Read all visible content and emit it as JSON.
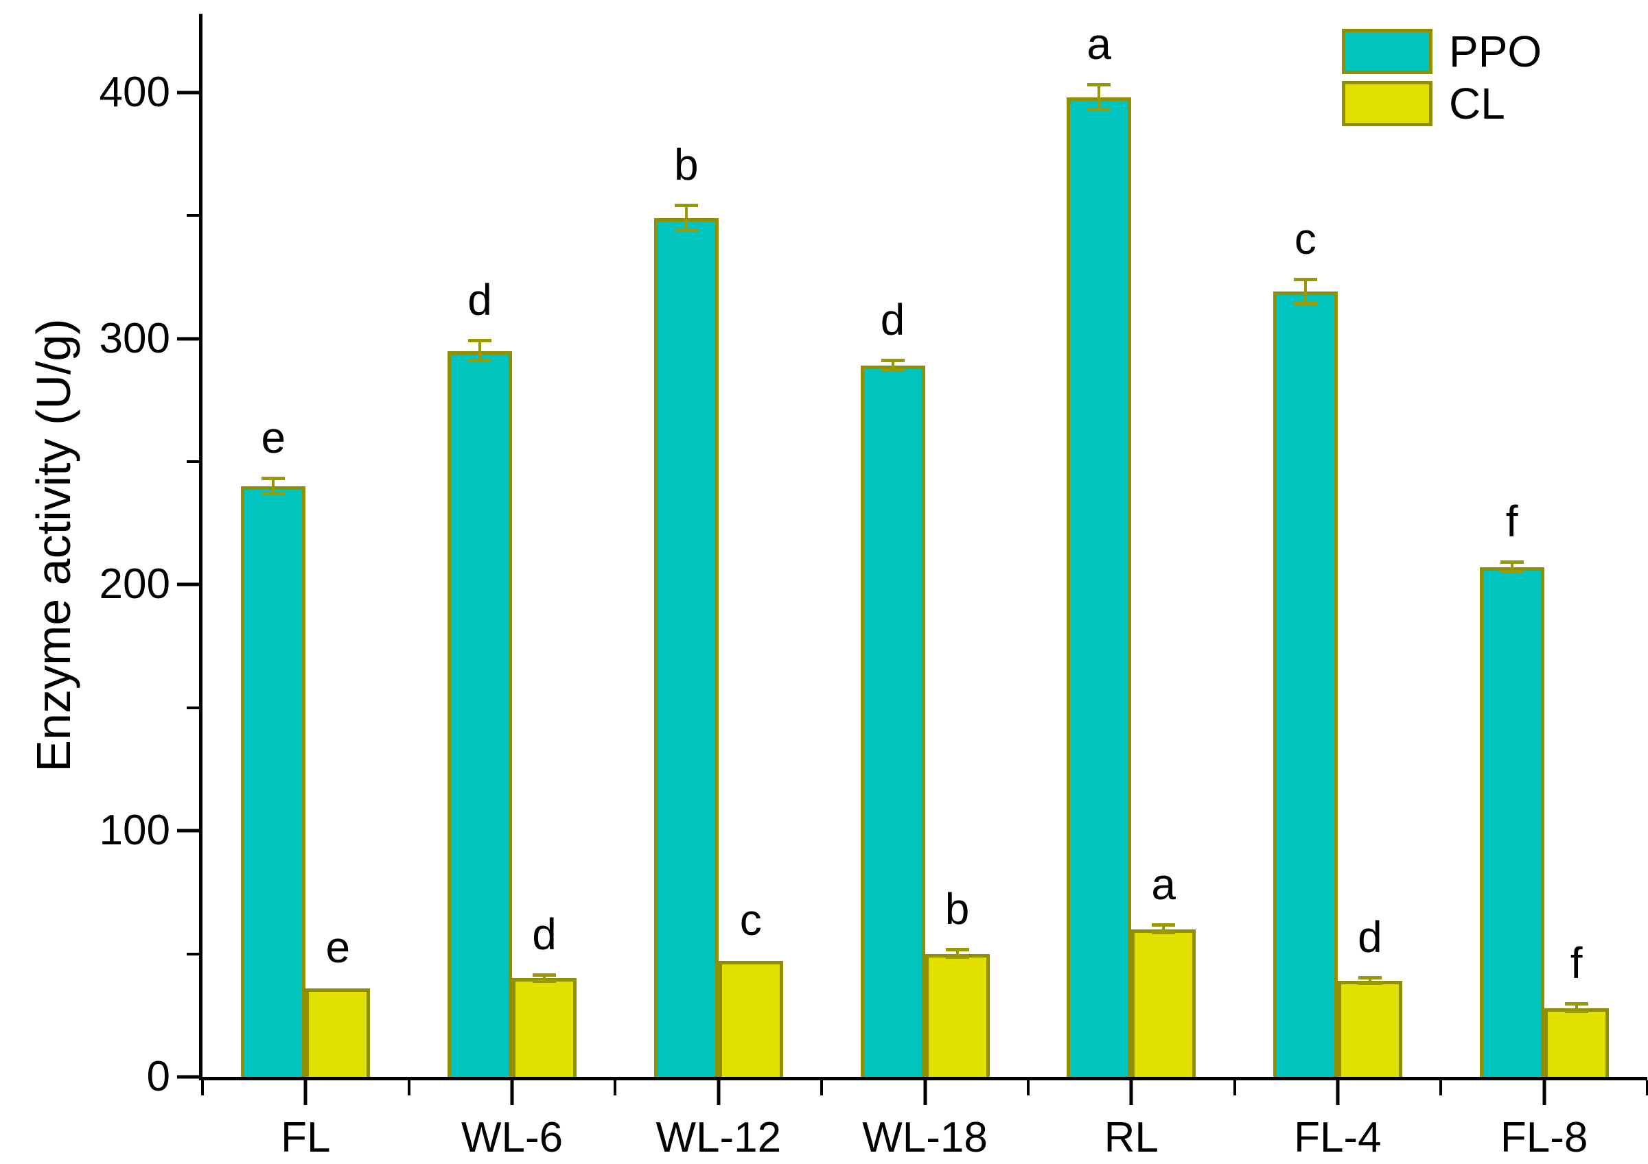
{
  "chart_data": {
    "type": "bar",
    "title": "",
    "xlabel": "",
    "ylabel": "Enzyme activity (U/g)",
    "categories": [
      "FL",
      "WL-6",
      "WL-12",
      "WL-18",
      "RL",
      "FL-4",
      "FL-8"
    ],
    "series": [
      {
        "name": "PPO",
        "color": "#00c4bd",
        "border_color": "#8f8f00",
        "values": [
          240,
          295,
          349,
          289,
          398,
          319,
          207
        ],
        "errors": [
          3,
          4,
          5,
          2,
          5,
          5,
          2
        ],
        "letters": [
          "e",
          "d",
          "b",
          "d",
          "a",
          "c",
          "f"
        ]
      },
      {
        "name": "CL",
        "color": "#e2e000",
        "border_color": "#8f8f00",
        "values": [
          36,
          40,
          47,
          50,
          60,
          39,
          28
        ],
        "errors": [
          0,
          1.2,
          0,
          1.5,
          1.5,
          1.2,
          1.5
        ],
        "letters": [
          "e",
          "d",
          "c",
          "b",
          "a",
          "d",
          "f"
        ]
      }
    ],
    "yticks": [
      0,
      100,
      200,
      300,
      400
    ],
    "yminorticks": [
      50,
      150,
      250,
      350
    ],
    "ylim": [
      0,
      432
    ],
    "grid": false,
    "legend_position": "top-right",
    "axis_color": "#000000",
    "error_bar_color": "#9a9a00"
  }
}
